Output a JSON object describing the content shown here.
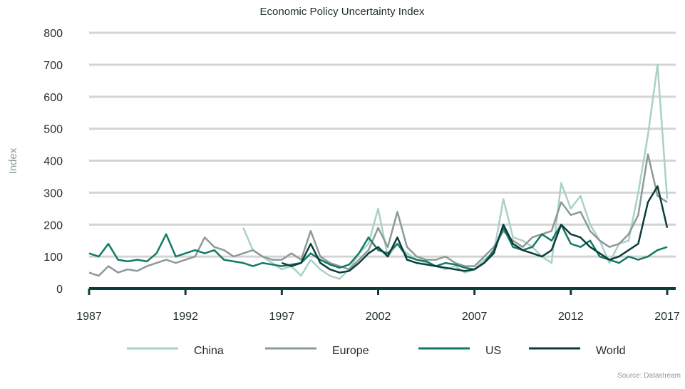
{
  "chart_data": {
    "type": "line",
    "title": "Economic Policy Uncertainty Index",
    "xlabel": "",
    "ylabel": "Index",
    "xlim": [
      1987,
      2017
    ],
    "ylim": [
      0,
      800
    ],
    "yticks": [
      0,
      100,
      200,
      300,
      400,
      500,
      600,
      700,
      800
    ],
    "xticks": [
      1987,
      1992,
      1997,
      2002,
      2007,
      2012,
      2017
    ],
    "grid": true,
    "legend_position": "bottom",
    "source": "Source: Datastream",
    "x_start": 1987,
    "x_step": 0.5,
    "series": [
      {
        "name": "China",
        "color": "#a9d1c7",
        "values": [
          null,
          null,
          null,
          null,
          null,
          null,
          null,
          null,
          null,
          null,
          null,
          null,
          null,
          null,
          null,
          null,
          190,
          120,
          100,
          80,
          60,
          70,
          40,
          90,
          60,
          40,
          30,
          60,
          110,
          140,
          250,
          100,
          140,
          110,
          90,
          80,
          70,
          60,
          70,
          50,
          60,
          90,
          110,
          280,
          160,
          150,
          130,
          100,
          80,
          330,
          250,
          290,
          200,
          150,
          80,
          140,
          150,
          300,
          480,
          700,
          280
        ]
      },
      {
        "name": "Europe",
        "color": "#8b9a95",
        "values": [
          50,
          40,
          70,
          50,
          60,
          55,
          70,
          80,
          90,
          80,
          90,
          100,
          160,
          130,
          120,
          100,
          110,
          120,
          100,
          90,
          90,
          110,
          90,
          180,
          100,
          80,
          70,
          60,
          90,
          120,
          190,
          130,
          240,
          130,
          100,
          90,
          90,
          100,
          80,
          70,
          70,
          100,
          130,
          180,
          150,
          130,
          160,
          170,
          180,
          270,
          230,
          240,
          180,
          150,
          130,
          140,
          170,
          230,
          420,
          290,
          270
        ]
      },
      {
        "name": "US",
        "color": "#127a65",
        "values": [
          110,
          100,
          140,
          90,
          85,
          90,
          85,
          110,
          170,
          100,
          110,
          120,
          110,
          120,
          90,
          85,
          80,
          70,
          80,
          75,
          70,
          75,
          80,
          110,
          90,
          75,
          65,
          75,
          110,
          160,
          120,
          110,
          140,
          100,
          90,
          85,
          70,
          80,
          75,
          65,
          60,
          80,
          120,
          190,
          130,
          120,
          130,
          170,
          150,
          200,
          140,
          130,
          150,
          100,
          90,
          80,
          100,
          90,
          100,
          120,
          130
        ]
      },
      {
        "name": "World",
        "color": "#0b3d3a",
        "values": [
          null,
          null,
          null,
          null,
          null,
          null,
          null,
          null,
          null,
          null,
          null,
          null,
          null,
          null,
          null,
          null,
          null,
          null,
          null,
          null,
          80,
          70,
          80,
          140,
          80,
          60,
          50,
          55,
          80,
          110,
          130,
          100,
          160,
          90,
          80,
          75,
          70,
          65,
          60,
          55,
          60,
          80,
          110,
          200,
          140,
          120,
          110,
          100,
          120,
          200,
          170,
          160,
          130,
          110,
          90,
          100,
          120,
          140,
          270,
          320,
          190
        ]
      }
    ]
  }
}
